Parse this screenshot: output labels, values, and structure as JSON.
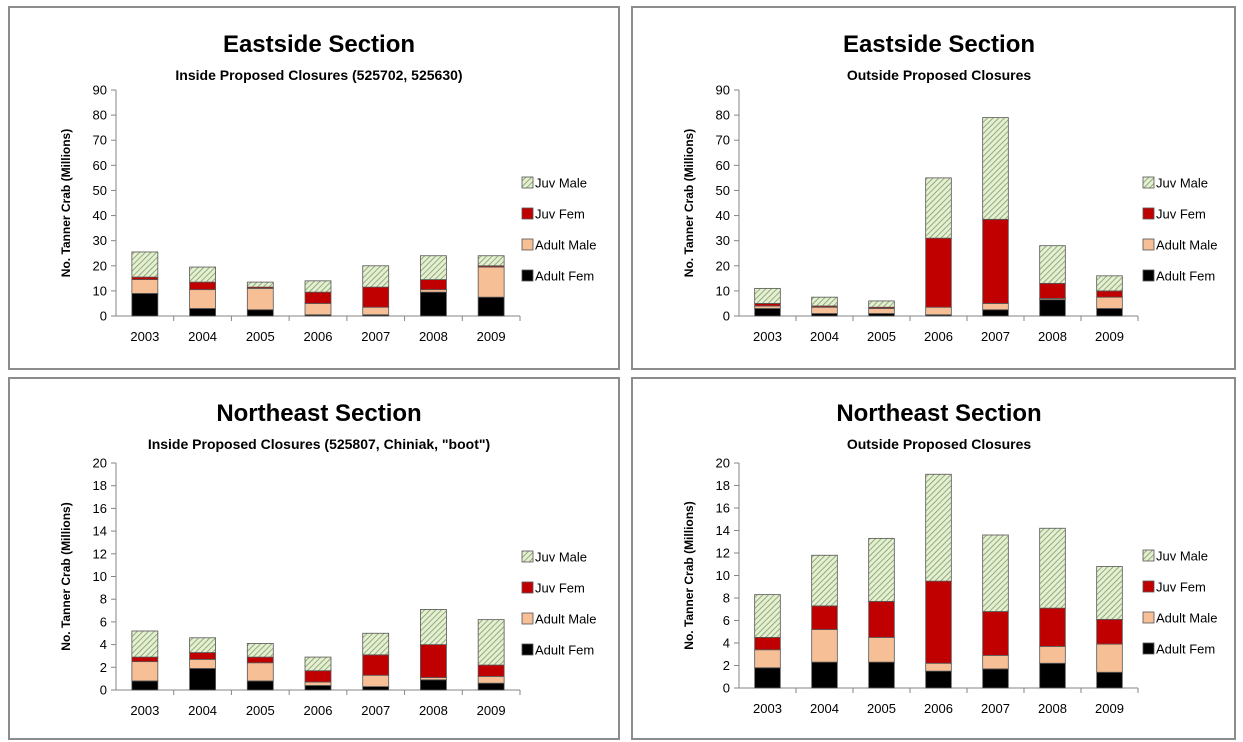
{
  "colors": {
    "adult_fem": "#000000",
    "adult_male": "#f7bf95",
    "juv_fem": "#c00000",
    "juv_male_fill": "#e4efd4",
    "juv_male_hatch": "#7f9c5e",
    "axis": "#868686",
    "border": "#8c8c8c"
  },
  "chart_data": [
    {
      "type": "bar",
      "stacked": true,
      "title": "Eastside Section",
      "subtitle": "Inside Proposed Closures (525702, 525630)",
      "ylabel": "No. Tanner Crab (Millions)",
      "xlabel": "",
      "ylim": [
        0,
        90
      ],
      "yticks": [
        0,
        10,
        20,
        30,
        40,
        50,
        60,
        70,
        80,
        90
      ],
      "categories": [
        "2003",
        "2004",
        "2005",
        "2006",
        "2007",
        "2008",
        "2009"
      ],
      "legend_position": "right",
      "series": [
        {
          "name": "Adult Fem",
          "values": [
            9,
            3,
            2.5,
            0.5,
            0.5,
            9.5,
            7.5
          ]
        },
        {
          "name": "Adult Male",
          "values": [
            5.5,
            7.5,
            8.5,
            4.5,
            3,
            1,
            12
          ]
        },
        {
          "name": "Juv Fem",
          "values": [
            1,
            3,
            0.5,
            4.5,
            8,
            4,
            0.5
          ]
        },
        {
          "name": "Juv Male",
          "values": [
            10,
            6,
            2,
            4.5,
            8.5,
            9.5,
            4
          ]
        }
      ]
    },
    {
      "type": "bar",
      "stacked": true,
      "title": "Eastside Section",
      "subtitle": "Outside Proposed Closures",
      "ylabel": "No. Tanner Crab (Millions)",
      "xlabel": "",
      "ylim": [
        0,
        90
      ],
      "yticks": [
        0,
        10,
        20,
        30,
        40,
        50,
        60,
        70,
        80,
        90
      ],
      "categories": [
        "2003",
        "2004",
        "2005",
        "2006",
        "2007",
        "2008",
        "2009"
      ],
      "legend_position": "right",
      "series": [
        {
          "name": "Adult Fem",
          "values": [
            3,
            1,
            1,
            0.5,
            2.5,
            6.5,
            3
          ]
        },
        {
          "name": "Adult Male",
          "values": [
            1,
            2.5,
            2,
            3,
            2.5,
            0.5,
            4.5
          ]
        },
        {
          "name": "Juv Fem",
          "values": [
            1,
            0.5,
            0.5,
            27.5,
            33.5,
            6,
            2.5
          ]
        },
        {
          "name": "Juv Male",
          "values": [
            6,
            3.5,
            2.5,
            24,
            40.5,
            15,
            6
          ]
        }
      ]
    },
    {
      "type": "bar",
      "stacked": true,
      "title": "Northeast Section",
      "subtitle": "Inside Proposed Closures (525807, Chiniak, \"boot\")",
      "ylabel": "No. Tanner Crab (Millions)",
      "xlabel": "",
      "ylim": [
        0,
        20
      ],
      "yticks": [
        0,
        2,
        4,
        6,
        8,
        10,
        12,
        14,
        16,
        18,
        20
      ],
      "categories": [
        "2003",
        "2004",
        "2005",
        "2006",
        "2007",
        "2008",
        "2009"
      ],
      "legend_position": "right",
      "series": [
        {
          "name": "Adult Fem",
          "values": [
            0.8,
            1.9,
            0.8,
            0.4,
            0.3,
            0.9,
            0.6
          ]
        },
        {
          "name": "Adult Male",
          "values": [
            1.7,
            0.8,
            1.6,
            0.3,
            1.0,
            0.2,
            0.6
          ]
        },
        {
          "name": "Juv Fem",
          "values": [
            0.4,
            0.6,
            0.5,
            1.0,
            1.8,
            2.9,
            1.0
          ]
        },
        {
          "name": "Juv Male",
          "values": [
            2.3,
            1.3,
            1.2,
            1.2,
            1.9,
            3.1,
            4.0
          ]
        }
      ]
    },
    {
      "type": "bar",
      "stacked": true,
      "title": "Northeast Section",
      "subtitle": "Outside Proposed Closures",
      "ylabel": "No. Tanner Crab (Millions)",
      "xlabel": "",
      "ylim": [
        0,
        20
      ],
      "yticks": [
        0,
        2,
        4,
        6,
        8,
        10,
        12,
        14,
        16,
        18,
        20
      ],
      "categories": [
        "2003",
        "2004",
        "2005",
        "2006",
        "2007",
        "2008",
        "2009"
      ],
      "legend_position": "right",
      "series": [
        {
          "name": "Adult Fem",
          "values": [
            1.8,
            2.3,
            2.3,
            1.5,
            1.7,
            2.2,
            1.4
          ]
        },
        {
          "name": "Adult Male",
          "values": [
            1.6,
            2.9,
            2.2,
            0.7,
            1.2,
            1.5,
            2.5
          ]
        },
        {
          "name": "Juv Fem",
          "values": [
            1.1,
            2.1,
            3.2,
            7.3,
            3.9,
            3.4,
            2.2
          ]
        },
        {
          "name": "Juv Male",
          "values": [
            3.8,
            4.5,
            5.6,
            9.5,
            6.8,
            7.1,
            4.7
          ]
        }
      ]
    }
  ]
}
